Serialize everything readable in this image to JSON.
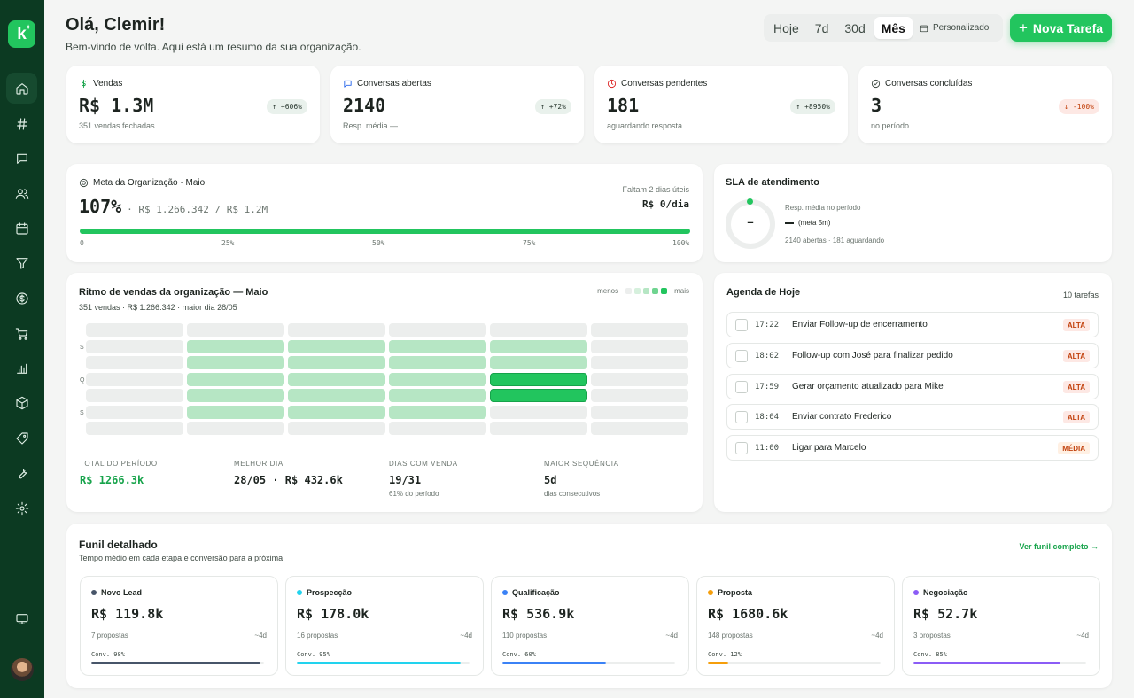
{
  "sidebar": {
    "logo": "k"
  },
  "header": {
    "greeting": "Olá, Clemir!",
    "subtitle": "Bem-vindo de volta. Aqui está um resumo da sua organização.",
    "ranges": [
      "Hoje",
      "7d",
      "30d",
      "Mês"
    ],
    "selected_range": "Mês",
    "custom_label": "Personalizado",
    "new_task_label": "Nova Tarefa"
  },
  "kpis": [
    {
      "title": "Vendas",
      "value": "R$ 1.3M",
      "sub": "351 vendas fechadas",
      "badge": "+606%",
      "trend": "up",
      "icon": "dollar-icon",
      "color": "#16a34a"
    },
    {
      "title": "Conversas abertas",
      "value": "2140",
      "sub": "Resp. média —",
      "badge": "+72%",
      "trend": "up",
      "icon": "chat-icon",
      "color": "#2563eb"
    },
    {
      "title": "Conversas pendentes",
      "value": "181",
      "sub": "aguardando resposta",
      "badge": "+8950%",
      "trend": "up",
      "icon": "clock-icon",
      "color": "#dc2626"
    },
    {
      "title": "Conversas concluídas",
      "value": "3",
      "sub": "no período",
      "badge": "-100%",
      "trend": "down",
      "icon": "check-circle-icon",
      "color": "#3e4a43"
    }
  ],
  "goal": {
    "title": "Meta da Organização · Maio",
    "percent": "107%",
    "detail": "· R$ 1.266.342 / R$ 1.2M",
    "remaining": "Faltam 2 dias úteis",
    "per_day": "R$ 0/dia",
    "progress": 1.0,
    "ticks": [
      "0",
      "25%",
      "50%",
      "75%",
      "100%"
    ]
  },
  "sla": {
    "title": "SLA de atendimento",
    "center": "–",
    "line1": "Resp. média no período",
    "line2": "(meta 5m)",
    "line3": "2140 abertas · 181 aguardando"
  },
  "heatmap": {
    "title": "Ritmo de vendas da organização — Maio",
    "subtitle": "351 vendas · R$ 1.266.342 · maior dia 28/05",
    "legend_less": "menos",
    "legend_more": "mais",
    "row_labels": [
      "S",
      "",
      "Q",
      "",
      "S",
      ""
    ],
    "grid": [
      [
        0,
        0,
        0,
        0,
        0,
        0
      ],
      [
        0,
        1,
        1,
        1,
        1,
        0
      ],
      [
        0,
        1,
        1,
        1,
        1,
        0
      ],
      [
        0,
        1,
        1,
        1,
        3,
        0
      ],
      [
        0,
        1,
        1,
        1,
        3,
        0
      ],
      [
        0,
        1,
        1,
        1,
        0,
        0
      ],
      [
        0,
        0,
        0,
        0,
        0,
        0
      ]
    ],
    "stats": [
      {
        "label": "TOTAL DO PERÍODO",
        "value": "R$ 1266.3k",
        "sub": ""
      },
      {
        "label": "MELHOR DIA",
        "value": "28/05 · R$ 432.6k",
        "sub": ""
      },
      {
        "label": "DIAS COM VENDA",
        "value": "19/31",
        "sub": "61% do período"
      },
      {
        "label": "MAIOR SEQUÊNCIA",
        "value": "5d",
        "sub": "dias consecutivos"
      }
    ]
  },
  "agenda": {
    "title": "Agenda de Hoje",
    "count": "10 tarefas",
    "tasks": [
      {
        "time": "17:22",
        "name": "Enviar Follow-up de encerramento",
        "priority": "ALTA",
        "level": "alta"
      },
      {
        "time": "18:02",
        "name": "Follow-up com José para finalizar pedido",
        "priority": "ALTA",
        "level": "alta"
      },
      {
        "time": "17:59",
        "name": "Gerar orçamento atualizado para Mike",
        "priority": "ALTA",
        "level": "alta"
      },
      {
        "time": "18:04",
        "name": "Enviar contrato Frederico",
        "priority": "ALTA",
        "level": "alta"
      },
      {
        "time": "11:00",
        "name": "Ligar para Marcelo",
        "priority": "MÉDIA",
        "level": "media"
      }
    ]
  },
  "funnel": {
    "title": "Funil detalhado",
    "subtitle": "Tempo médio em cada etapa e conversão para a próxima",
    "link": "Ver funil completo →",
    "stages": [
      {
        "name": "Novo Lead",
        "value": "R$ 119.8k",
        "count": "7 propostas",
        "time": "~4d",
        "conv_label": "Conv. 98%",
        "conv": 0.98,
        "color": "#475569"
      },
      {
        "name": "Prospecção",
        "value": "R$ 178.0k",
        "count": "16 propostas",
        "time": "~4d",
        "conv_label": "Conv. 95%",
        "conv": 0.95,
        "color": "#22d3ee"
      },
      {
        "name": "Qualificação",
        "value": "R$ 536.9k",
        "count": "110 propostas",
        "time": "~4d",
        "conv_label": "Conv. 60%",
        "conv": 0.6,
        "color": "#3b82f6"
      },
      {
        "name": "Proposta",
        "value": "R$ 1680.6k",
        "count": "148 propostas",
        "time": "~4d",
        "conv_label": "Conv. 12%",
        "conv": 0.12,
        "color": "#f59e0b"
      },
      {
        "name": "Negociação",
        "value": "R$ 52.7k",
        "count": "3 propostas",
        "time": "~4d",
        "conv_label": "Conv. 85%",
        "conv": 0.85,
        "color": "#8b5cf6"
      }
    ]
  }
}
